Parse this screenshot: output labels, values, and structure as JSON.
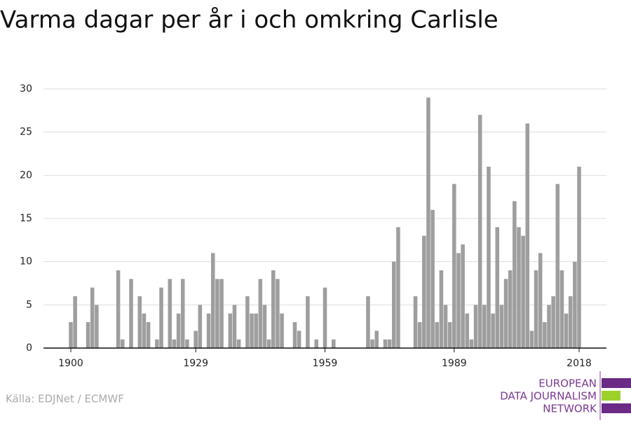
{
  "chart_data": {
    "type": "bar",
    "title": "Varma dagar per år i och omkring Carlisle",
    "source": "Källa: EDJNet / ECMWF",
    "logo": [
      "EUROPEAN",
      "DATA JOURNALISM",
      "NETWORK"
    ],
    "color": "#9e9e9e",
    "grid": true,
    "ylim": [
      0,
      30
    ],
    "yticks": [
      0,
      5,
      10,
      15,
      20,
      25,
      30
    ],
    "categories": [
      "1900",
      null,
      null,
      null,
      null,
      null,
      null,
      null,
      null,
      null,
      null,
      null,
      null,
      null,
      null,
      null,
      null,
      null,
      null,
      null,
      null,
      null,
      null,
      null,
      null,
      null,
      null,
      null,
      null,
      "1929",
      null,
      null,
      null,
      null,
      null,
      null,
      null,
      null,
      null,
      null,
      null,
      null,
      null,
      null,
      null,
      null,
      null,
      null,
      null,
      null,
      null,
      null,
      null,
      null,
      null,
      null,
      null,
      null,
      null,
      "1959",
      null,
      null,
      null,
      null,
      null,
      null,
      null,
      null,
      null,
      null,
      null,
      null,
      null,
      null,
      null,
      null,
      null,
      null,
      null,
      null,
      null,
      null,
      null,
      null,
      null,
      null,
      null,
      null,
      null,
      "1989",
      null,
      null,
      null,
      null,
      null,
      null,
      null,
      null,
      null,
      null,
      null,
      null,
      null,
      null,
      null,
      null,
      null,
      null,
      null,
      null,
      null,
      null,
      null,
      null,
      null,
      null,
      null,
      null,
      "2018"
    ],
    "values": [
      3,
      6,
      0,
      0,
      3,
      7,
      5,
      0,
      0,
      0,
      0,
      9,
      1,
      0,
      8,
      0,
      6,
      4,
      3,
      0,
      1,
      7,
      0,
      8,
      1,
      4,
      8,
      1,
      0,
      2,
      5,
      0,
      4,
      11,
      8,
      8,
      0,
      4,
      5,
      1,
      0,
      6,
      4,
      4,
      8,
      5,
      1,
      9,
      8,
      4,
      0,
      0,
      3,
      2,
      0,
      6,
      0,
      1,
      0,
      7,
      0,
      1,
      0,
      0,
      0,
      0,
      0,
      0,
      0,
      6,
      1,
      2,
      0,
      1,
      1,
      10,
      14,
      0,
      0,
      0,
      6,
      3,
      13,
      29,
      16,
      3,
      9,
      5,
      3,
      19,
      11,
      12,
      4,
      1,
      5,
      27,
      5,
      21,
      4,
      14,
      5,
      8,
      9,
      17,
      14,
      13,
      26,
      2,
      9,
      11,
      3,
      5,
      6,
      19,
      9,
      4,
      6,
      10,
      21
    ]
  }
}
